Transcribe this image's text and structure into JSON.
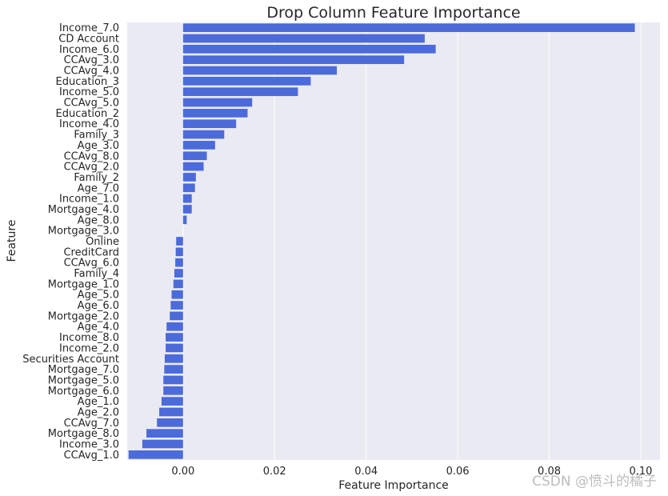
{
  "chart_data": {
    "type": "bar",
    "orientation": "horizontal",
    "title": "Drop Column Feature Importance",
    "xlabel": "Feature Importance",
    "ylabel": "Feature",
    "xlim": [
      -0.0122,
      0.1042
    ],
    "xticks": [
      "0.00",
      "0.02",
      "0.04",
      "0.06",
      "0.08",
      "0.10"
    ],
    "xtick_values": [
      0,
      0.02,
      0.04,
      0.06,
      0.08,
      0.1
    ],
    "grid": true,
    "bar_color": "#4c6ad9",
    "categories": [
      "Income_7.0",
      "CD Account",
      "Income_6.0",
      "CCAvg_3.0",
      "CCAvg_4.0",
      "Education_3",
      "Income_5.0",
      "CCAvg_5.0",
      "Education_2",
      "Income_4.0",
      "Family_3",
      "Age_3.0",
      "CCAvg_8.0",
      "CCAvg_2.0",
      "Family_2",
      "Age_7.0",
      "Income_1.0",
      "Mortgage_4.0",
      "Age_8.0",
      "Mortgage_3.0",
      "Online",
      "CreditCard",
      "CCAvg_6.0",
      "Family_4",
      "Mortgage_1.0",
      "Age_5.0",
      "Age_6.0",
      "Mortgage_2.0",
      "Age_4.0",
      "Income_8.0",
      "Income_2.0",
      "Securities Account",
      "Mortgage_7.0",
      "Mortgage_5.0",
      "Mortgage_6.0",
      "Age_1.0",
      "Age_2.0",
      "CCAvg_7.0",
      "Mortgage_8.0",
      "Income_3.0",
      "CCAvg_1.0"
    ],
    "values": [
      0.0987,
      0.0528,
      0.0552,
      0.0483,
      0.0336,
      0.0279,
      0.0251,
      0.0151,
      0.0141,
      0.0116,
      0.009,
      0.007,
      0.0052,
      0.0045,
      0.0028,
      0.0026,
      0.0019,
      0.0019,
      0.0008,
      0.0,
      -0.0015,
      -0.0016,
      -0.0017,
      -0.0019,
      -0.0021,
      -0.0025,
      -0.0027,
      -0.0029,
      -0.0036,
      -0.0038,
      -0.0038,
      -0.004,
      -0.0041,
      -0.0043,
      -0.0043,
      -0.0047,
      -0.0052,
      -0.0057,
      -0.008,
      -0.0089,
      -0.0119
    ]
  },
  "watermark": "CSDN @愤斗的橘子"
}
